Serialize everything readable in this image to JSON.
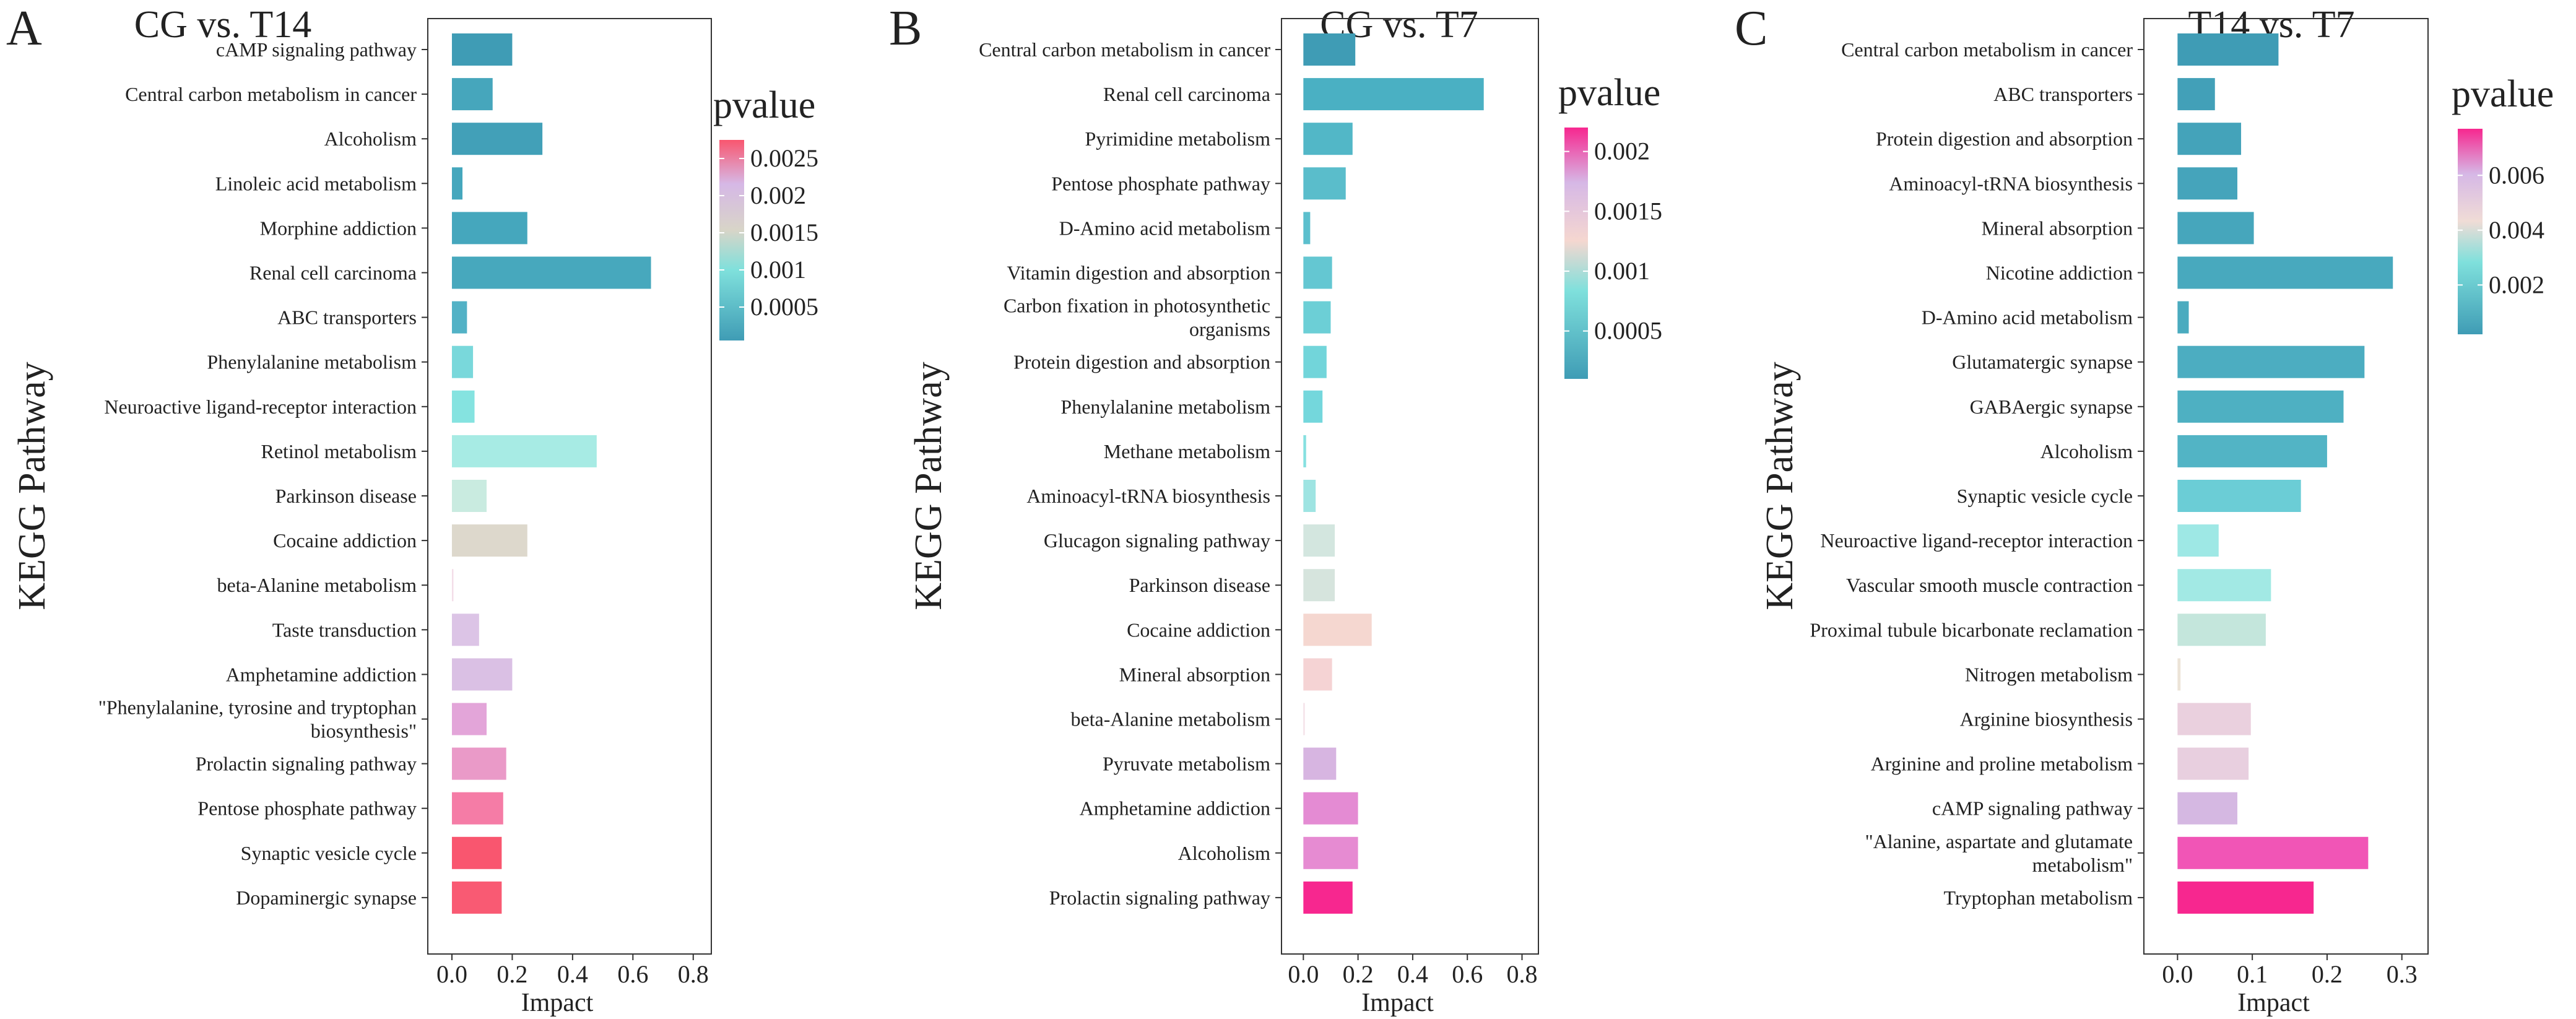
{
  "chart_data": [
    {
      "type": "bar",
      "orientation": "horizontal",
      "panel_label": "A",
      "title": "CG vs. T14",
      "xlabel": "Impact",
      "ylabel": "KEGG Pathway",
      "xlim": [
        -0.08,
        0.86
      ],
      "xticks": [
        0.0,
        0.2,
        0.4,
        0.6,
        0.8
      ],
      "xtick_labels": [
        "0.0",
        "0.2",
        "0.4",
        "0.6",
        "0.8"
      ],
      "color_legend": {
        "title": "pvalue",
        "low_color": "#3f9cb5",
        "mid_color": "#d8d5c8",
        "high_color": "#f9566f",
        "range": [
          5e-05,
          0.00275
        ],
        "ticks": [
          0.0005,
          0.001,
          0.0015,
          0.002,
          0.0025
        ],
        "tick_labels": [
          "0.0005",
          "0.001",
          "0.0015",
          "0.002",
          "0.0025"
        ]
      },
      "categories": [
        [
          "cAMP signaling pathway"
        ],
        [
          "Central carbon metabolism in cancer"
        ],
        [
          "Alcoholism"
        ],
        [
          "Linoleic acid metabolism"
        ],
        [
          "Morphine addiction"
        ],
        [
          "Renal cell carcinoma"
        ],
        [
          "ABC transporters"
        ],
        [
          "Phenylalanine metabolism"
        ],
        [
          "Neuroactive ligand-receptor interaction"
        ],
        [
          "Retinol metabolism"
        ],
        [
          "Parkinson disease"
        ],
        [
          "Cocaine addiction"
        ],
        [
          "beta-Alanine metabolism"
        ],
        [
          "Taste transduction"
        ],
        [
          "Amphetamine addiction"
        ],
        [
          "\"Phenylalanine, tyrosine and tryptophan",
          "biosynthesis\""
        ],
        [
          "Prolactin signaling pathway"
        ],
        [
          "Pentose phosphate pathway"
        ],
        [
          "Synaptic vesicle cycle"
        ],
        [
          "Dopaminergic synapse"
        ]
      ],
      "values": [
        0.2,
        0.135,
        0.3,
        0.035,
        0.25,
        0.66,
        0.05,
        0.07,
        0.075,
        0.48,
        0.115,
        0.25,
        0.005,
        0.09,
        0.2,
        0.115,
        0.18,
        0.17,
        0.165,
        0.165
      ],
      "colors": [
        "#3f9cb5",
        "#46a6bc",
        "#42a0b8",
        "#45a7bd",
        "#45a7bd",
        "#47a8bd",
        "#52b2c6",
        "#79d8db",
        "#85e3e0",
        "#a7ebe4",
        "#c9ebe0",
        "#ddd8cc",
        "#f3dde8",
        "#dcc4e6",
        "#dac0e4",
        "#e3a5d9",
        "#ea9ac8",
        "#f57ca6",
        "#f9566f",
        "#f95a73"
      ]
    },
    {
      "type": "bar",
      "orientation": "horizontal",
      "panel_label": "B",
      "title": "CG vs. T7",
      "xlabel": "Impact",
      "ylabel": "KEGG Pathway",
      "xlim": [
        -0.08,
        0.86
      ],
      "xticks": [
        0.0,
        0.2,
        0.4,
        0.6,
        0.8
      ],
      "xtick_labels": [
        "0.0",
        "0.2",
        "0.4",
        "0.6",
        "0.8"
      ],
      "color_legend": {
        "title": "pvalue",
        "low_color": "#3f9cb5",
        "mid_color": "#f5d7d0",
        "high_color": "#f7278f",
        "range": [
          0.0001,
          0.0022
        ],
        "ticks": [
          0.0005,
          0.001,
          0.0015,
          0.002
        ],
        "tick_labels": [
          "0.0005",
          "0.001",
          "0.0015",
          "0.002"
        ]
      },
      "categories": [
        [
          "Central carbon metabolism in cancer"
        ],
        [
          "Renal cell carcinoma"
        ],
        [
          "Pyrimidine metabolism"
        ],
        [
          "Pentose phosphate pathway"
        ],
        [
          "D-Amino acid metabolism"
        ],
        [
          "Vitamin digestion and absorption"
        ],
        [
          "Carbon fixation in photosynthetic",
          "organisms"
        ],
        [
          "Protein digestion and absorption"
        ],
        [
          "Phenylalanine metabolism"
        ],
        [
          "Methane metabolism"
        ],
        [
          "Aminoacyl-tRNA biosynthesis"
        ],
        [
          "Glucagon signaling pathway"
        ],
        [
          "Parkinson disease"
        ],
        [
          "Cocaine addiction"
        ],
        [
          "Mineral absorption"
        ],
        [
          "beta-Alanine metabolism"
        ],
        [
          "Pyruvate metabolism"
        ],
        [
          "Amphetamine addiction"
        ],
        [
          "Alcoholism"
        ],
        [
          "Prolactin signaling pathway"
        ]
      ],
      "values": [
        0.19,
        0.66,
        0.18,
        0.155,
        0.025,
        0.105,
        0.1,
        0.085,
        0.07,
        0.01,
        0.045,
        0.115,
        0.115,
        0.25,
        0.105,
        0.005,
        0.12,
        0.2,
        0.2,
        0.18
      ],
      "colors": [
        "#3f9cb5",
        "#4ab0c3",
        "#52b7c7",
        "#5abdcb",
        "#5cbfcd",
        "#64c7d2",
        "#6ccfd6",
        "#72d5da",
        "#74d7dc",
        "#86e0e0",
        "#9ee4e2",
        "#d3e6df",
        "#d6e4dd",
        "#f5d7d0",
        "#f5d3d4",
        "#f3dfe6",
        "#d7b5e1",
        "#e48bd3",
        "#e68bd2",
        "#f7278f"
      ]
    },
    {
      "type": "bar",
      "orientation": "horizontal",
      "panel_label": "C",
      "title": "T14 vs. T7",
      "xlabel": "Impact",
      "ylabel": "KEGG Pathway",
      "xlim": [
        -0.045,
        0.335
      ],
      "xticks": [
        0.0,
        0.1,
        0.2,
        0.3
      ],
      "xtick_labels": [
        "0.0",
        "0.1",
        "0.2",
        "0.3"
      ],
      "color_legend": {
        "title": "pvalue",
        "low_color": "#3f9cb5",
        "mid_color": "#f0dcd6",
        "high_color": "#f7278f",
        "range": [
          0.0002,
          0.0077
        ],
        "ticks": [
          0.002,
          0.004,
          0.006
        ],
        "tick_labels": [
          "0.002",
          "0.004",
          "0.006"
        ]
      },
      "categories": [
        [
          "Central carbon metabolism in cancer"
        ],
        [
          "ABC transporters"
        ],
        [
          "Protein digestion and absorption"
        ],
        [
          "Aminoacyl-tRNA biosynthesis"
        ],
        [
          "Mineral absorption"
        ],
        [
          "Nicotine addiction"
        ],
        [
          "D-Amino acid metabolism"
        ],
        [
          "Glutamatergic synapse"
        ],
        [
          "GABAergic synapse"
        ],
        [
          "Alcoholism"
        ],
        [
          "Synaptic vesicle cycle"
        ],
        [
          "Neuroactive ligand-receptor interaction"
        ],
        [
          "Vascular smooth muscle contraction"
        ],
        [
          "Proximal tubule bicarbonate reclamation"
        ],
        [
          "Nitrogen metabolism"
        ],
        [
          "Arginine biosynthesis"
        ],
        [
          "Arginine and proline metabolism"
        ],
        [
          "cAMP signaling pathway"
        ],
        [
          "\"Alanine, aspartate and glutamate",
          "metabolism\""
        ],
        [
          "Tryptophan metabolism"
        ]
      ],
      "values": [
        0.135,
        0.05,
        0.085,
        0.08,
        0.102,
        0.288,
        0.015,
        0.25,
        0.222,
        0.2,
        0.165,
        0.055,
        0.125,
        0.118,
        0.004,
        0.098,
        0.095,
        0.08,
        0.255,
        0.182
      ],
      "colors": [
        "#3f9cb5",
        "#42a0b8",
        "#44a3ba",
        "#45a4bb",
        "#46a6bc",
        "#48a9be",
        "#4aabbf",
        "#4cadc1",
        "#4eb0c2",
        "#52b4c5",
        "#6bcdd6",
        "#9ee8e5",
        "#a2e9e4",
        "#c4e6dc",
        "#ece4d8",
        "#ead0de",
        "#e8cfdf",
        "#d5b8e2",
        "#f155b6",
        "#f7278f"
      ]
    }
  ]
}
